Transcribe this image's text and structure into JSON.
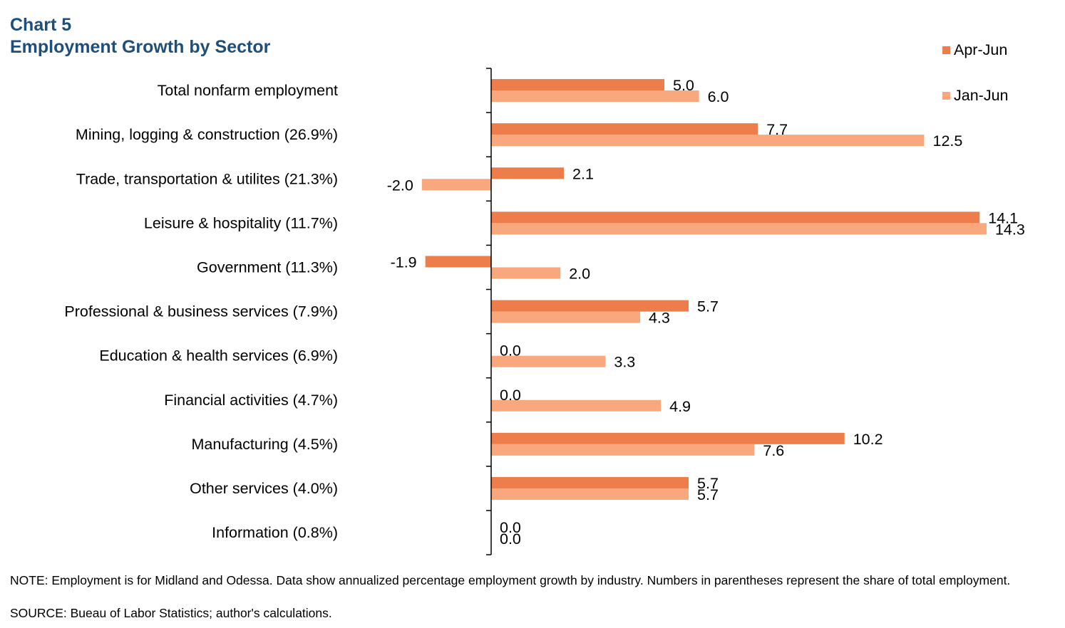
{
  "header": {
    "chart_number": "Chart 5",
    "title": "Employment Growth by Sector"
  },
  "colors": {
    "title": "#1F4E79",
    "series_apr_jun": "#ED7D4A",
    "series_jan_jun": "#F9A77D"
  },
  "chart_data": {
    "type": "bar",
    "orientation": "horizontal",
    "title": "Employment Growth by Sector",
    "categories": [
      "Total nonfarm employment",
      "Mining, logging & construction (26.9%)",
      "Trade, transportation & utilites (21.3%)",
      "Leisure & hospitality (11.7%)",
      "Government (11.3%)",
      "Professional & business services (7.9%)",
      "Education & health services (6.9%)",
      "Financial activities (4.7%)",
      "Manufacturing (4.5%)",
      "Other services (4.0%)",
      "Information (0.8%)"
    ],
    "series": [
      {
        "name": "Apr-Jun",
        "color": "#ED7D4A",
        "values": [
          5.0,
          7.7,
          2.1,
          14.1,
          -1.9,
          5.7,
          0.0,
          0.0,
          10.2,
          5.7,
          0.0
        ]
      },
      {
        "name": "Jan-Jun",
        "color": "#F9A77D",
        "values": [
          6.0,
          12.5,
          -2.0,
          14.3,
          2.0,
          4.3,
          3.3,
          4.9,
          7.6,
          5.7,
          0.0
        ]
      }
    ],
    "data_label_format": "0.0",
    "legend_position": "top-right",
    "grid": false
  },
  "footer": {
    "note": "NOTE: Employment is for Midland and Odessa. Data show annualized percentage employment growth by industry. Numbers in parentheses represent the share of total employment.",
    "source": "SOURCE: Bueau of Labor Statistics; author's calculations."
  }
}
